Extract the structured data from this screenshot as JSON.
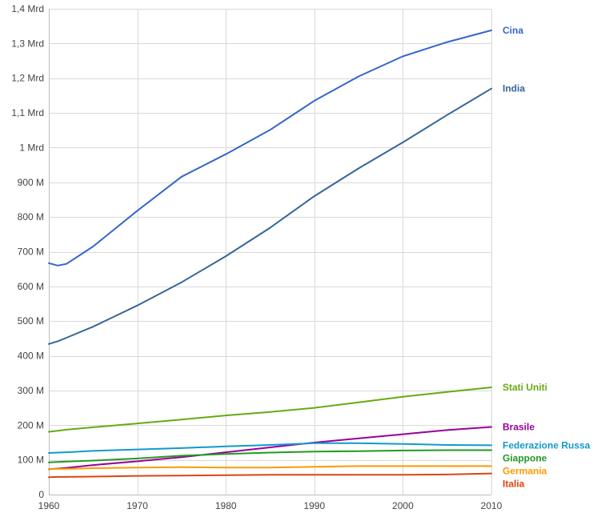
{
  "chart_data": {
    "type": "line",
    "title": "",
    "xlabel": "",
    "ylabel": "",
    "xlim": [
      1960,
      2010
    ],
    "ylim": [
      0,
      1400000000
    ],
    "grid": true,
    "legend": "inline-right",
    "x_ticks": [
      {
        "value": 1960,
        "label": "1960"
      },
      {
        "value": 1970,
        "label": "1970"
      },
      {
        "value": 1980,
        "label": "1980"
      },
      {
        "value": 1990,
        "label": "1990"
      },
      {
        "value": 2000,
        "label": "2000"
      },
      {
        "value": 2010,
        "label": "2010"
      }
    ],
    "y_ticks": [
      {
        "value": 0,
        "label": "0"
      },
      {
        "value": 100000000,
        "label": "100 M"
      },
      {
        "value": 200000000,
        "label": "200 M"
      },
      {
        "value": 300000000,
        "label": "300 M"
      },
      {
        "value": 400000000,
        "label": "400 M"
      },
      {
        "value": 500000000,
        "label": "500 M"
      },
      {
        "value": 600000000,
        "label": "600 M"
      },
      {
        "value": 700000000,
        "label": "700 M"
      },
      {
        "value": 800000000,
        "label": "800 M"
      },
      {
        "value": 900000000,
        "label": "900 M"
      },
      {
        "value": 1000000000,
        "label": "1 Mrd"
      },
      {
        "value": 1100000000,
        "label": "1,1 Mrd"
      },
      {
        "value": 1200000000,
        "label": "1,2 Mrd"
      },
      {
        "value": 1300000000,
        "label": "1,3 Mrd"
      },
      {
        "value": 1400000000,
        "label": "1,4 Mrd"
      }
    ],
    "x": [
      1960,
      1961,
      1962,
      1965,
      1970,
      1975,
      1980,
      1985,
      1990,
      1995,
      2000,
      2005,
      2010
    ],
    "series": [
      {
        "name": "Cina",
        "color": "#3366cc",
        "values": [
          667000000,
          660000000,
          665000000,
          715000000,
          818000000,
          916000000,
          981000000,
          1051000000,
          1135000000,
          1205000000,
          1263000000,
          1304000000,
          1338000000
        ]
      },
      {
        "name": "India",
        "color": "#336699",
        "values": [
          434000000,
          442000000,
          452000000,
          484000000,
          545000000,
          612000000,
          687000000,
          769000000,
          860000000,
          940000000,
          1015000000,
          1094000000,
          1170000000
        ]
      },
      {
        "name": "Stati Uniti",
        "color": "#66aa11",
        "values": [
          181000000,
          184000000,
          187000000,
          194000000,
          205000000,
          216000000,
          228000000,
          238000000,
          250000000,
          266000000,
          282000000,
          296000000,
          309000000
        ]
      },
      {
        "name": "Brasile",
        "color": "#990099",
        "values": [
          73000000,
          75000000,
          77000000,
          85000000,
          96000000,
          108000000,
          122000000,
          136000000,
          150000000,
          162000000,
          174000000,
          186000000,
          195000000
        ]
      },
      {
        "name": "Federazione Russa",
        "color": "#1199cc",
        "values": [
          120000000,
          121000000,
          122000000,
          126000000,
          130000000,
          134000000,
          139000000,
          143000000,
          148000000,
          148000000,
          146000000,
          143000000,
          142000000
        ]
      },
      {
        "name": "Giappone",
        "color": "#229922",
        "values": [
          93000000,
          94000000,
          95000000,
          98000000,
          104000000,
          112000000,
          117000000,
          121000000,
          124000000,
          125000000,
          127000000,
          128000000,
          128000000
        ]
      },
      {
        "name": "Germania",
        "color": "#ff9900",
        "values": [
          73000000,
          74000000,
          74000000,
          76000000,
          78000000,
          79000000,
          78000000,
          78000000,
          80000000,
          82000000,
          82000000,
          82000000,
          82000000
        ]
      },
      {
        "name": "Italia",
        "color": "#dd4411",
        "values": [
          50000000,
          51000000,
          51000000,
          52000000,
          54000000,
          55000000,
          56000000,
          57000000,
          57000000,
          57000000,
          57000000,
          58000000,
          61000000
        ]
      }
    ]
  }
}
